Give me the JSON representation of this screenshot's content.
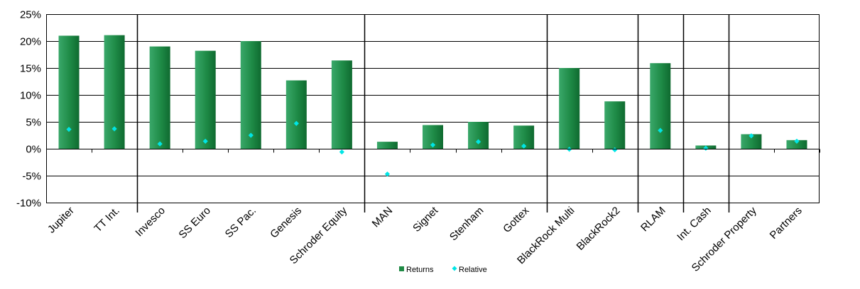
{
  "chart_data": {
    "type": "bar",
    "categories": [
      "Jupiter",
      "TT Int.",
      "Invesco",
      "SS Euro",
      "SS Pac.",
      "Genesis",
      "Schroder Equity",
      "MAN",
      "Signet",
      "Stenham",
      "Gottex",
      "BlackRock Multi",
      "BlackRock2",
      "RLAM",
      "Int. Cash",
      "Schroder Property",
      "Partners"
    ],
    "series": [
      {
        "name": "Returns",
        "type": "bar",
        "color": "#1f8a45",
        "values": [
          21.0,
          21.1,
          19.0,
          18.2,
          20.0,
          12.7,
          16.4,
          1.3,
          4.4,
          5.0,
          4.3,
          15.0,
          8.8,
          15.9,
          0.6,
          2.7,
          1.6
        ]
      },
      {
        "name": "Relative",
        "type": "scatter",
        "color": "#00e5e5",
        "values": [
          3.6,
          3.7,
          0.9,
          1.4,
          2.5,
          4.7,
          -0.6,
          -4.7,
          0.7,
          1.3,
          0.5,
          -0.1,
          -0.2,
          3.4,
          0.1,
          2.4,
          1.4
        ]
      }
    ],
    "ylim": [
      -10,
      25
    ],
    "yticks": [
      -10,
      -5,
      0,
      5,
      10,
      15,
      20,
      25
    ],
    "ytick_labels": [
      "-10%",
      "-5%",
      "0%",
      "5%",
      "10%",
      "15%",
      "20%",
      "25%"
    ],
    "group_separators_after_index": [
      1,
      6,
      10,
      12,
      13,
      14
    ],
    "grid": true,
    "legend_position": "bottom-center"
  }
}
